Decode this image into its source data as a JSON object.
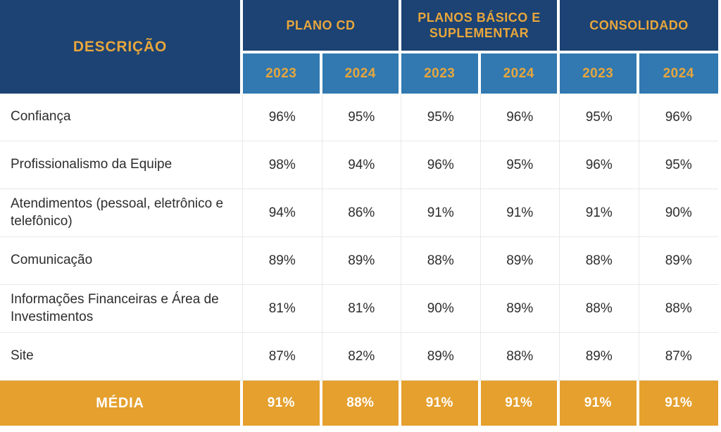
{
  "table": {
    "description_header": "DESCRIÇÃO",
    "groups": [
      {
        "label": "PLANO CD"
      },
      {
        "label": "PLANOS BÁSICO E SUPLEMENTAR"
      },
      {
        "label": "CONSOLIDADO"
      }
    ],
    "year_headers": [
      "2023",
      "2024",
      "2023",
      "2024",
      "2023",
      "2024"
    ],
    "rows": [
      {
        "label": "Confiança",
        "values": [
          "96%",
          "95%",
          "95%",
          "96%",
          "95%",
          "96%"
        ]
      },
      {
        "label": "Profissionalismo da Equipe",
        "values": [
          "98%",
          "94%",
          "96%",
          "95%",
          "96%",
          "95%"
        ]
      },
      {
        "label": "Atendimentos (pessoal, eletrônico e telefônico)",
        "values": [
          "94%",
          "86%",
          "91%",
          "91%",
          "91%",
          "90%"
        ]
      },
      {
        "label": "Comunicação",
        "values": [
          "89%",
          "89%",
          "88%",
          "89%",
          "88%",
          "89%"
        ]
      },
      {
        "label": "Informações Financeiras e Área de Investimentos",
        "values": [
          "81%",
          "81%",
          "90%",
          "89%",
          "88%",
          "88%"
        ]
      },
      {
        "label": "Site",
        "values": [
          "87%",
          "82%",
          "89%",
          "88%",
          "89%",
          "87%"
        ]
      }
    ],
    "footer": {
      "label": "MÉDIA",
      "values": [
        "91%",
        "88%",
        "91%",
        "91%",
        "91%",
        "91%"
      ]
    }
  },
  "colors": {
    "navy": "#1C4373",
    "blue": "#3179B0",
    "gold": "#E8A63C",
    "amber": "#E5A02E",
    "row_text": "#2D2D2D",
    "grid_line": "#E9E9E9"
  },
  "chart_data": {
    "type": "table",
    "title": "",
    "column_groups": [
      "PLANO CD",
      "PLANOS BÁSICO E SUPLEMENTAR",
      "CONSOLIDADO"
    ],
    "columns": [
      "DESCRIÇÃO",
      "PLANO CD 2023",
      "PLANO CD 2024",
      "PLANOS BÁSICO E SUPLEMENTAR 2023",
      "PLANOS BÁSICO E SUPLEMENTAR 2024",
      "CONSOLIDADO 2023",
      "CONSOLIDADO 2024"
    ],
    "rows": [
      [
        "Confiança",
        96,
        95,
        95,
        96,
        95,
        96
      ],
      [
        "Profissionalismo da Equipe",
        98,
        94,
        96,
        95,
        96,
        95
      ],
      [
        "Atendimentos (pessoal, eletrônico e telefônico)",
        94,
        86,
        91,
        91,
        91,
        90
      ],
      [
        "Comunicação",
        89,
        89,
        88,
        89,
        88,
        89
      ],
      [
        "Informações Financeiras e Área de Investimentos",
        81,
        81,
        90,
        89,
        88,
        88
      ],
      [
        "Site",
        87,
        82,
        89,
        88,
        89,
        87
      ],
      [
        "MÉDIA",
        91,
        88,
        91,
        91,
        91,
        91
      ]
    ],
    "unit": "%"
  }
}
